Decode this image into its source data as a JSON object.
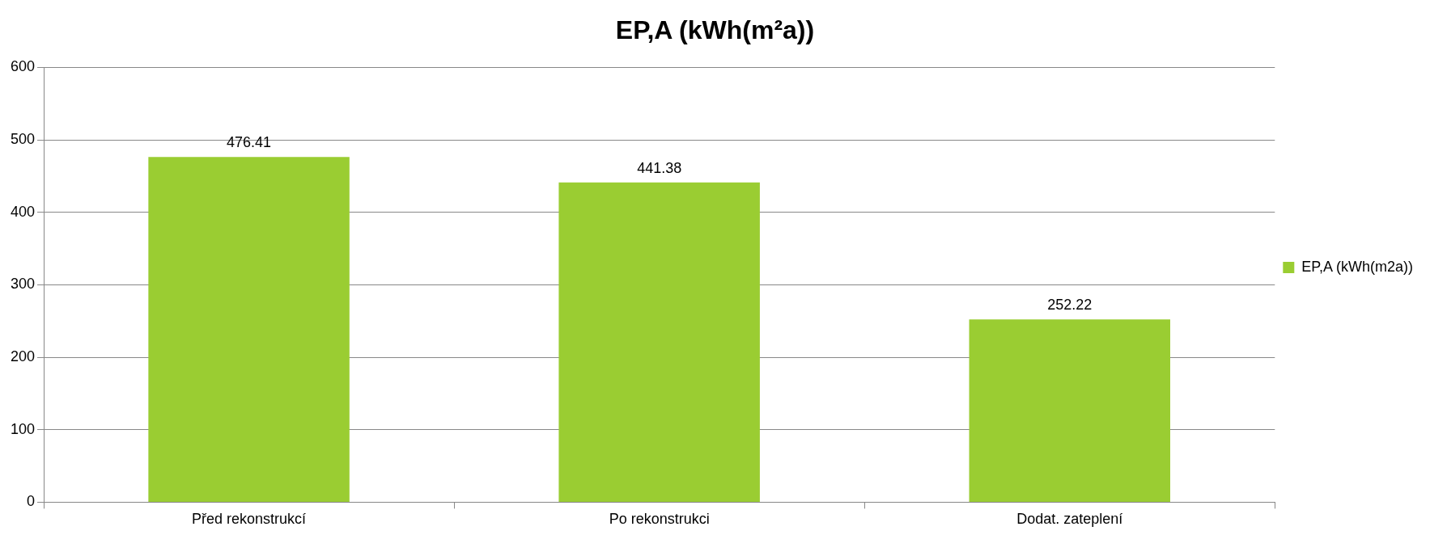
{
  "chart_data": {
    "type": "bar",
    "title": "EP,A (kWh(m²a))",
    "categories": [
      "Před rekonstrukcí",
      "Po rekonstrukci",
      "Dodat. zateplení"
    ],
    "series": [
      {
        "name": "EP,A (kWh(m2a))",
        "color": "#9acd32",
        "values": [
          476.41,
          441.38,
          252.22
        ]
      }
    ],
    "ylim": [
      0,
      600
    ],
    "yticks": [
      0,
      100,
      200,
      300,
      400,
      500,
      600
    ],
    "grid": "y",
    "legend": "right",
    "data_labels": true
  }
}
